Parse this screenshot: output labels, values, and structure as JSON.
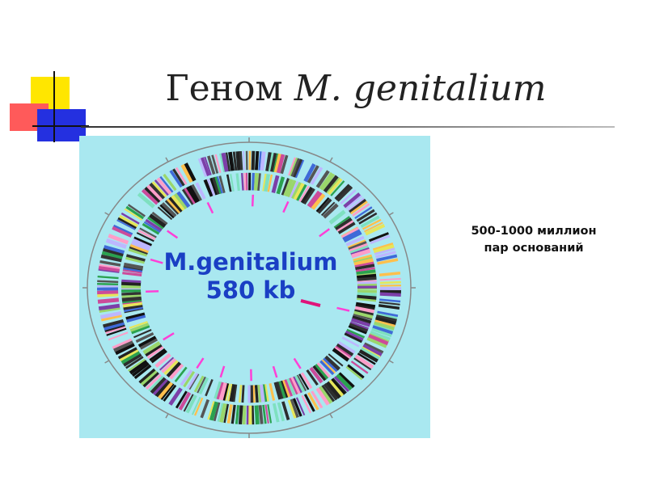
{
  "slide": {
    "title_prefix": "Геном",
    "title_species": "M. genitalium"
  },
  "figure": {
    "label_line1": "M.genitalium",
    "label_line2": "580 kb",
    "background_color": "#a9e8f0",
    "label_color": "#1a3fc4",
    "marker_colors": [
      "#ff3fd6",
      "#e0147a"
    ]
  },
  "note": {
    "line1": "500-1000 миллион",
    "line2": "пар оснований"
  },
  "decoration": {
    "colors": [
      "#ffe600",
      "#ff5a5a",
      "#2430e0"
    ]
  }
}
